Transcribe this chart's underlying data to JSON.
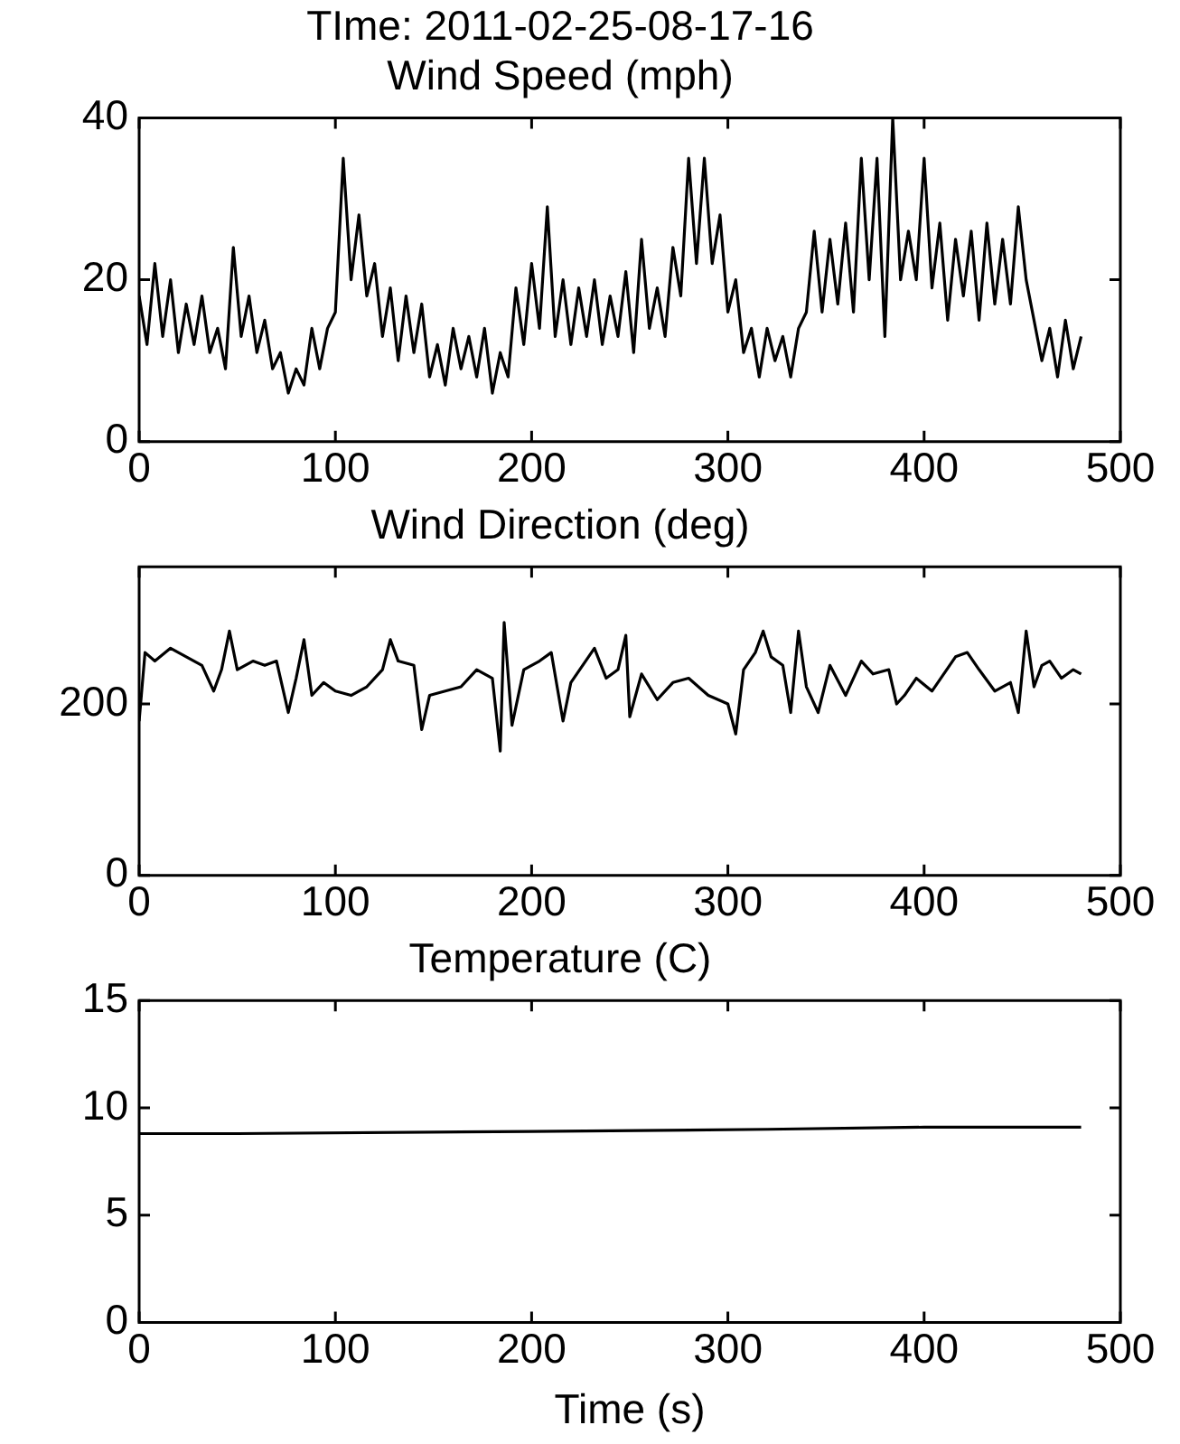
{
  "chart_data": [
    {
      "type": "line",
      "title": "TIme: 2011-02-25-08-17-16",
      "subtitle": "Wind Speed (mph)",
      "xlim": [
        0,
        500
      ],
      "xticks": [
        0,
        100,
        200,
        300,
        400,
        500
      ],
      "ylim": [
        0,
        40
      ],
      "yticks": [
        0,
        20,
        40
      ],
      "grid": false,
      "legend": false,
      "marker": "none",
      "line_style": "solid",
      "series": [
        {
          "color": "#000000",
          "x": [
            0,
            4,
            8,
            12,
            16,
            20,
            24,
            28,
            32,
            36,
            40,
            44,
            48,
            52,
            56,
            60,
            64,
            68,
            72,
            76,
            80,
            84,
            88,
            92,
            96,
            100,
            104,
            108,
            112,
            116,
            120,
            124,
            128,
            132,
            136,
            140,
            144,
            148,
            152,
            156,
            160,
            164,
            168,
            172,
            176,
            180,
            184,
            188,
            192,
            196,
            200,
            204,
            208,
            212,
            216,
            220,
            224,
            228,
            232,
            236,
            240,
            244,
            248,
            252,
            256,
            260,
            264,
            268,
            272,
            276,
            280,
            284,
            288,
            292,
            296,
            300,
            304,
            308,
            312,
            316,
            320,
            324,
            328,
            332,
            336,
            340,
            344,
            348,
            352,
            356,
            360,
            364,
            368,
            372,
            376,
            380,
            384,
            388,
            392,
            396,
            400,
            404,
            408,
            412,
            416,
            420,
            424,
            428,
            432,
            436,
            440,
            444,
            448,
            452,
            456,
            460,
            464,
            468,
            472,
            476,
            480
          ],
          "values": [
            18,
            12,
            22,
            13,
            20,
            11,
            17,
            12,
            18,
            11,
            14,
            9,
            24,
            13,
            18,
            11,
            15,
            9,
            11,
            6,
            9,
            7,
            14,
            9,
            14,
            16,
            35,
            20,
            28,
            18,
            22,
            13,
            19,
            10,
            18,
            11,
            17,
            8,
            12,
            7,
            14,
            9,
            13,
            8,
            14,
            6,
            11,
            8,
            19,
            12,
            22,
            14,
            29,
            13,
            20,
            12,
            19,
            13,
            20,
            12,
            18,
            13,
            21,
            11,
            25,
            14,
            19,
            13,
            24,
            18,
            35,
            22,
            35,
            22,
            28,
            16,
            20,
            11,
            14,
            8,
            14,
            10,
            13,
            8,
            14,
            16,
            26,
            16,
            25,
            17,
            27,
            16,
            35,
            20,
            35,
            13,
            40,
            20,
            26,
            20,
            35,
            19,
            27,
            15,
            25,
            18,
            26,
            15,
            27,
            17,
            25,
            17,
            29,
            20,
            15,
            10,
            14,
            8,
            15,
            9,
            13
          ]
        }
      ]
    },
    {
      "type": "line",
      "title": "Wind Direction (deg)",
      "xlim": [
        0,
        500
      ],
      "xticks": [
        0,
        100,
        200,
        300,
        400,
        500
      ],
      "ylim": [
        0,
        360
      ],
      "yticks": [
        0,
        200
      ],
      "grid": false,
      "legend": false,
      "marker": "none",
      "line_style": "solid",
      "series": [
        {
          "color": "#000000",
          "x": [
            0,
            3,
            8,
            16,
            24,
            32,
            38,
            42,
            46,
            50,
            58,
            64,
            70,
            76,
            80,
            84,
            88,
            94,
            100,
            108,
            116,
            124,
            128,
            132,
            140,
            144,
            148,
            156,
            164,
            172,
            180,
            184,
            186,
            190,
            196,
            204,
            210,
            216,
            220,
            226,
            232,
            238,
            244,
            248,
            250,
            256,
            264,
            272,
            280,
            290,
            300,
            304,
            308,
            314,
            318,
            322,
            328,
            332,
            336,
            340,
            346,
            352,
            360,
            368,
            374,
            382,
            386,
            390,
            396,
            404,
            410,
            416,
            422,
            428,
            436,
            444,
            448,
            452,
            456,
            460,
            464,
            470,
            476,
            480
          ],
          "values": [
            180,
            260,
            250,
            265,
            255,
            245,
            215,
            240,
            285,
            240,
            250,
            245,
            250,
            190,
            230,
            275,
            210,
            225,
            215,
            210,
            220,
            240,
            275,
            250,
            245,
            170,
            210,
            215,
            220,
            240,
            230,
            145,
            295,
            175,
            240,
            250,
            260,
            180,
            225,
            245,
            265,
            230,
            240,
            280,
            185,
            235,
            205,
            225,
            230,
            210,
            200,
            165,
            240,
            260,
            285,
            255,
            245,
            190,
            285,
            220,
            190,
            245,
            210,
            250,
            235,
            240,
            200,
            210,
            230,
            215,
            235,
            255,
            260,
            240,
            215,
            225,
            190,
            285,
            220,
            245,
            250,
            230,
            240,
            235
          ]
        }
      ]
    },
    {
      "type": "line",
      "title": "Temperature (C)",
      "xlabel": "Time (s)",
      "xlim": [
        0,
        500
      ],
      "xticks": [
        0,
        100,
        200,
        300,
        400,
        500
      ],
      "ylim": [
        0,
        15
      ],
      "yticks": [
        0,
        5,
        10,
        15
      ],
      "grid": false,
      "legend": false,
      "marker": "none",
      "line_style": "solid",
      "series": [
        {
          "color": "#000000",
          "x": [
            0,
            50,
            200,
            320,
            400,
            480
          ],
          "values": [
            8.8,
            8.8,
            8.9,
            9.0,
            9.1,
            9.1
          ]
        }
      ]
    }
  ]
}
